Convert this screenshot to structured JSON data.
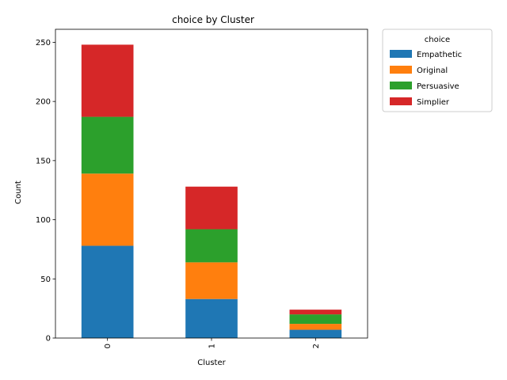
{
  "chart_data": {
    "type": "bar",
    "stacked": true,
    "title": "choice by Cluster",
    "xlabel": "Cluster",
    "ylabel": "Count",
    "categories": [
      "0",
      "1",
      "2"
    ],
    "x_tick_rotation": 90,
    "ylim": [
      0,
      261
    ],
    "yticks": [
      0,
      50,
      100,
      150,
      200,
      250
    ],
    "grid": false,
    "legend": {
      "title": "choice",
      "placement": "outside-top-right"
    },
    "series": [
      {
        "name": "Empathetic",
        "color": "#1f77b4",
        "values": [
          78,
          33,
          7
        ]
      },
      {
        "name": "Original",
        "color": "#ff7f0e",
        "values": [
          61,
          31,
          5
        ]
      },
      {
        "name": "Persuasive",
        "color": "#2ca02c",
        "values": [
          48,
          28,
          8
        ]
      },
      {
        "name": "Simplier",
        "color": "#d62728",
        "values": [
          61,
          36,
          4
        ]
      }
    ]
  }
}
